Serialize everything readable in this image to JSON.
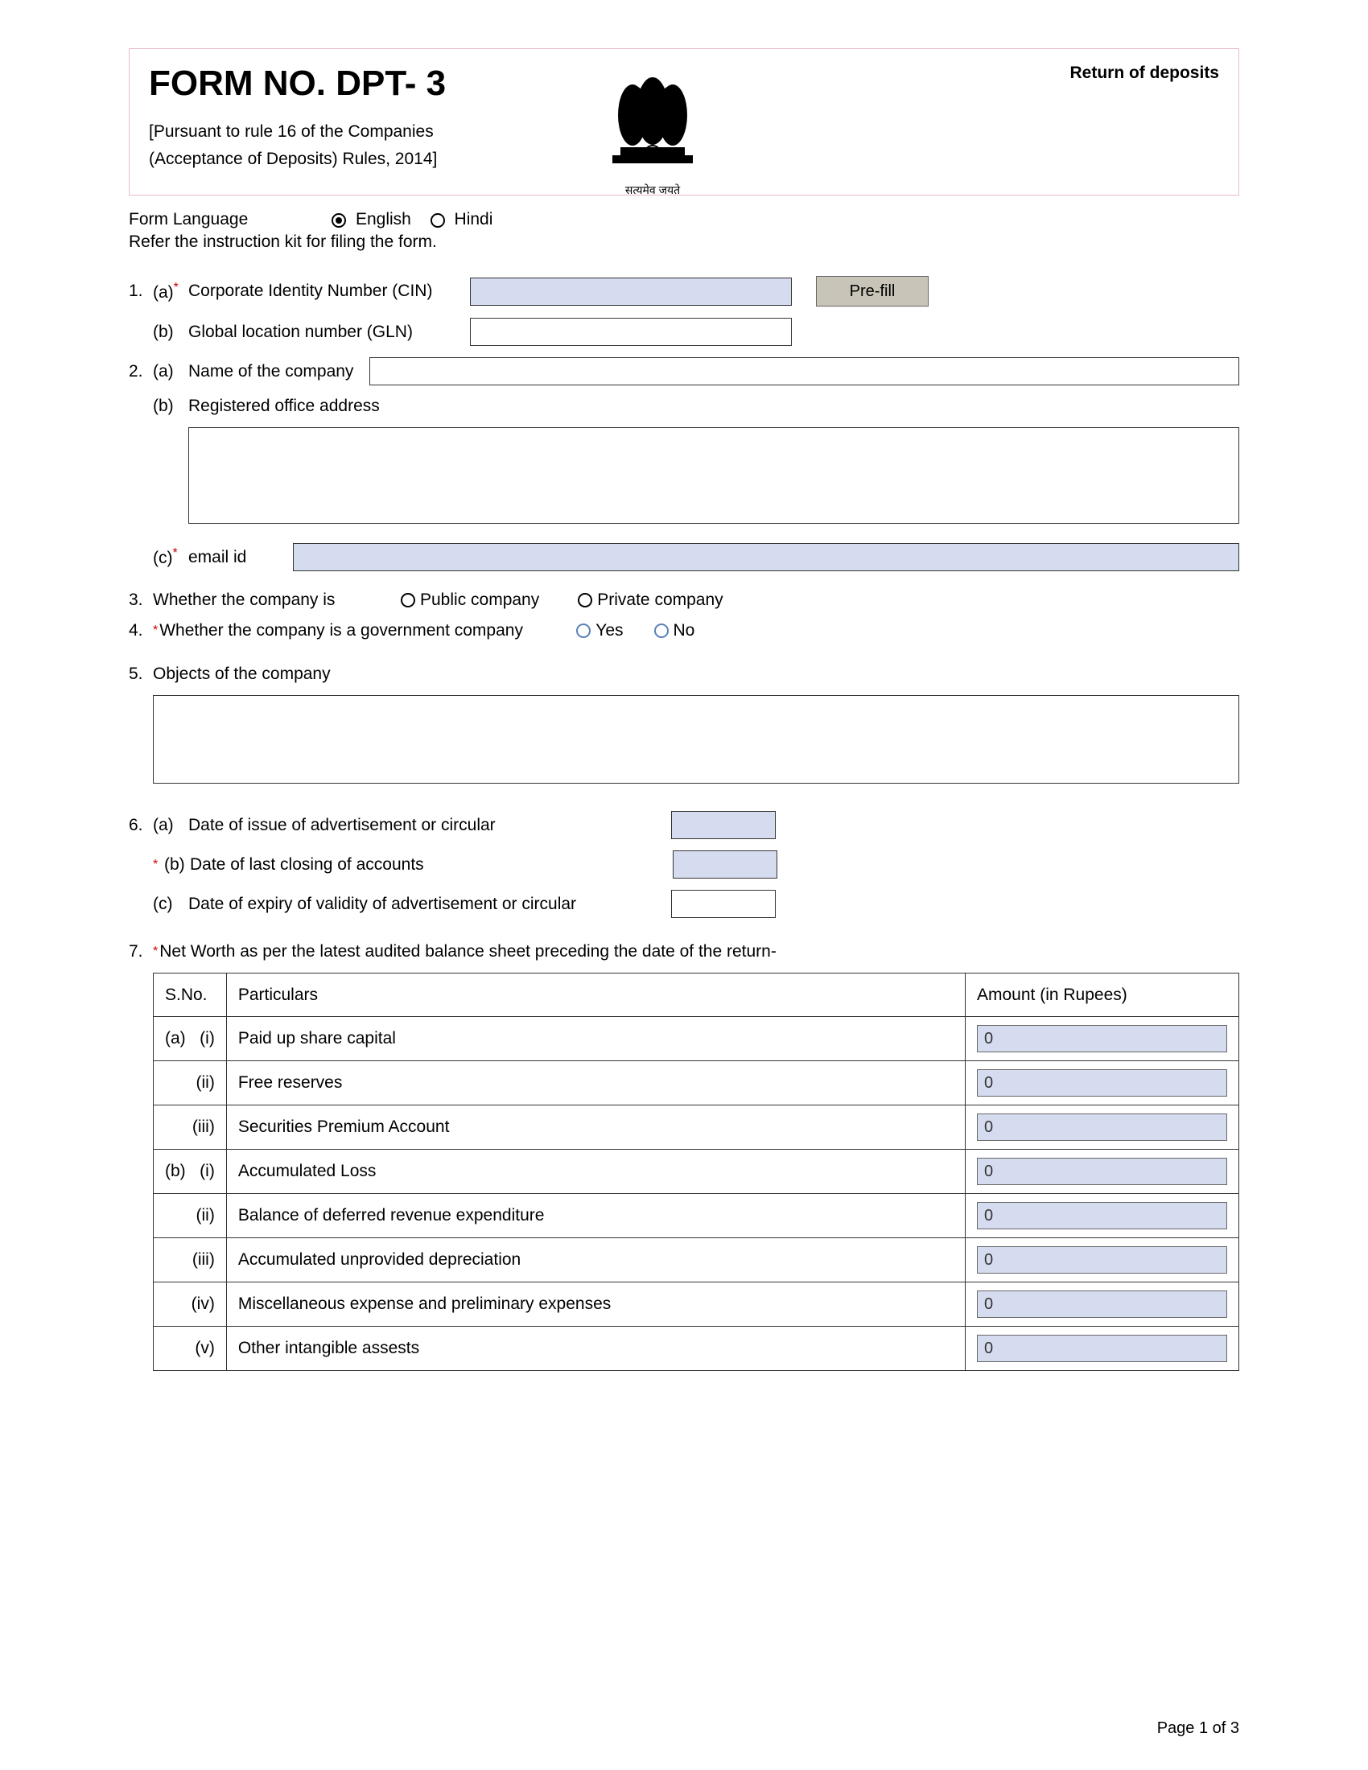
{
  "header": {
    "title": "FORM NO. DPT- 3",
    "pursuant_line1": "[Pursuant to rule 16 of the Companies",
    "pursuant_line2": "(Acceptance of Deposits) Rules, 2014]",
    "return_label": "Return of deposits",
    "motto": "सत्यमेव जयते"
  },
  "lang": {
    "label": "Form Language",
    "english": "English",
    "hindi": "Hindi",
    "instr": "Refer the instruction kit for filing the form."
  },
  "q1": {
    "num": "1.",
    "a_sub": "(a)",
    "a_label": "Corporate Identity Number (CIN)",
    "prefill": "Pre-fill",
    "b_sub": "(b)",
    "b_label": "Global location number (GLN)"
  },
  "q2": {
    "num": "2.",
    "a_sub": "(a)",
    "a_label": "Name of the company",
    "b_sub": "(b)",
    "b_label": "Registered office address",
    "c_sub": "(c)",
    "c_label": "email id"
  },
  "q3": {
    "num": "3.",
    "label": "Whether the company is",
    "opt1": "Public company",
    "opt2": "Private company"
  },
  "q4": {
    "num": "4.",
    "label": "Whether the company is a government company",
    "yes": "Yes",
    "no": "No"
  },
  "q5": {
    "num": "5.",
    "label": "Objects of the company"
  },
  "q6": {
    "num": "6.",
    "a_sub": "(a)",
    "a_label": "Date of issue of advertisement or circular",
    "b_sub": "(b)",
    "b_label": "Date of last closing of accounts",
    "c_sub": "(c)",
    "c_label": "Date of expiry of validity of advertisement or circular"
  },
  "q7": {
    "num": "7.",
    "label": "Net Worth as per the latest audited balance sheet preceding the date of the return-",
    "col_sno": "S.No.",
    "col_part": "Particulars",
    "col_amt": "Amount (in Rupees)",
    "rows": [
      {
        "sno": "(a)   (i)",
        "part": "Paid up share capital",
        "amt": "0"
      },
      {
        "sno": "(ii)",
        "part": "Free reserves",
        "amt": "0"
      },
      {
        "sno": "(iii)",
        "part": "Securities Premium Account",
        "amt": "0"
      },
      {
        "sno": "(b)   (i)",
        "part": "Accumulated Loss",
        "amt": "0"
      },
      {
        "sno": "(ii)",
        "part": "Balance of deferred revenue expenditure",
        "amt": "0"
      },
      {
        "sno": "(iii)",
        "part": "Accumulated unprovided depreciation",
        "amt": "0"
      },
      {
        "sno": "(iv)",
        "part": "Miscellaneous expense and preliminary expenses",
        "amt": "0"
      },
      {
        "sno": "(v)",
        "part": "Other intangible assests",
        "amt": "0"
      }
    ]
  },
  "footer": {
    "page": "Page 1 of 3"
  }
}
